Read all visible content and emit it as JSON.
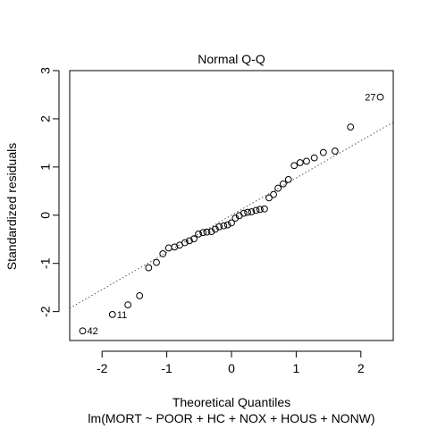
{
  "chart_data": {
    "type": "scatter",
    "title": "Normal Q-Q",
    "xlabel": "Theoretical Quantiles",
    "ylabel": "Standardized residuals",
    "subtitle": "lm(MORT ~ POOR + HC + NOX + HOUS + NONW)",
    "xlim": [
      -2.5,
      2.5
    ],
    "ylim": [
      -2.6,
      3.0
    ],
    "x_ticks": [
      "-2",
      "-1",
      "0",
      "1",
      "2"
    ],
    "y_ticks": [
      "-2",
      "-1",
      "0",
      "1",
      "2",
      "3"
    ],
    "points": [
      {
        "x": -2.3,
        "y": -2.4
      },
      {
        "x": -1.84,
        "y": -2.06
      },
      {
        "x": -1.6,
        "y": -1.86
      },
      {
        "x": -1.42,
        "y": -1.67
      },
      {
        "x": -1.28,
        "y": -1.09
      },
      {
        "x": -1.16,
        "y": -0.98
      },
      {
        "x": -1.06,
        "y": -0.8
      },
      {
        "x": -0.97,
        "y": -0.68
      },
      {
        "x": -0.88,
        "y": -0.66
      },
      {
        "x": -0.8,
        "y": -0.62
      },
      {
        "x": -0.72,
        "y": -0.57
      },
      {
        "x": -0.65,
        "y": -0.53
      },
      {
        "x": -0.58,
        "y": -0.49
      },
      {
        "x": -0.51,
        "y": -0.39
      },
      {
        "x": -0.44,
        "y": -0.36
      },
      {
        "x": -0.38,
        "y": -0.35
      },
      {
        "x": -0.31,
        "y": -0.34
      },
      {
        "x": -0.25,
        "y": -0.29
      },
      {
        "x": -0.19,
        "y": -0.24
      },
      {
        "x": -0.12,
        "y": -0.22
      },
      {
        "x": -0.06,
        "y": -0.2
      },
      {
        "x": 0.0,
        "y": -0.16
      },
      {
        "x": 0.06,
        "y": -0.06
      },
      {
        "x": 0.12,
        "y": -0.01
      },
      {
        "x": 0.19,
        "y": 0.04
      },
      {
        "x": 0.25,
        "y": 0.06
      },
      {
        "x": 0.31,
        "y": 0.07
      },
      {
        "x": 0.38,
        "y": 0.1
      },
      {
        "x": 0.44,
        "y": 0.12
      },
      {
        "x": 0.51,
        "y": 0.13
      },
      {
        "x": 0.58,
        "y": 0.36
      },
      {
        "x": 0.65,
        "y": 0.43
      },
      {
        "x": 0.72,
        "y": 0.56
      },
      {
        "x": 0.8,
        "y": 0.65
      },
      {
        "x": 0.88,
        "y": 0.74
      },
      {
        "x": 0.97,
        "y": 1.03
      },
      {
        "x": 1.06,
        "y": 1.09
      },
      {
        "x": 1.16,
        "y": 1.12
      },
      {
        "x": 1.28,
        "y": 1.19
      },
      {
        "x": 1.42,
        "y": 1.3
      },
      {
        "x": 1.6,
        "y": 1.33
      },
      {
        "x": 1.84,
        "y": 1.83
      },
      {
        "x": 2.3,
        "y": 2.45
      }
    ],
    "reference_line": {
      "x1": -2.5,
      "y1": -1.93,
      "x2": 2.5,
      "y2": 1.93
    },
    "point_labels": [
      {
        "index": 0,
        "label": "42"
      },
      {
        "index": 1,
        "label": "11"
      },
      {
        "index": 42,
        "label": "27"
      }
    ]
  }
}
